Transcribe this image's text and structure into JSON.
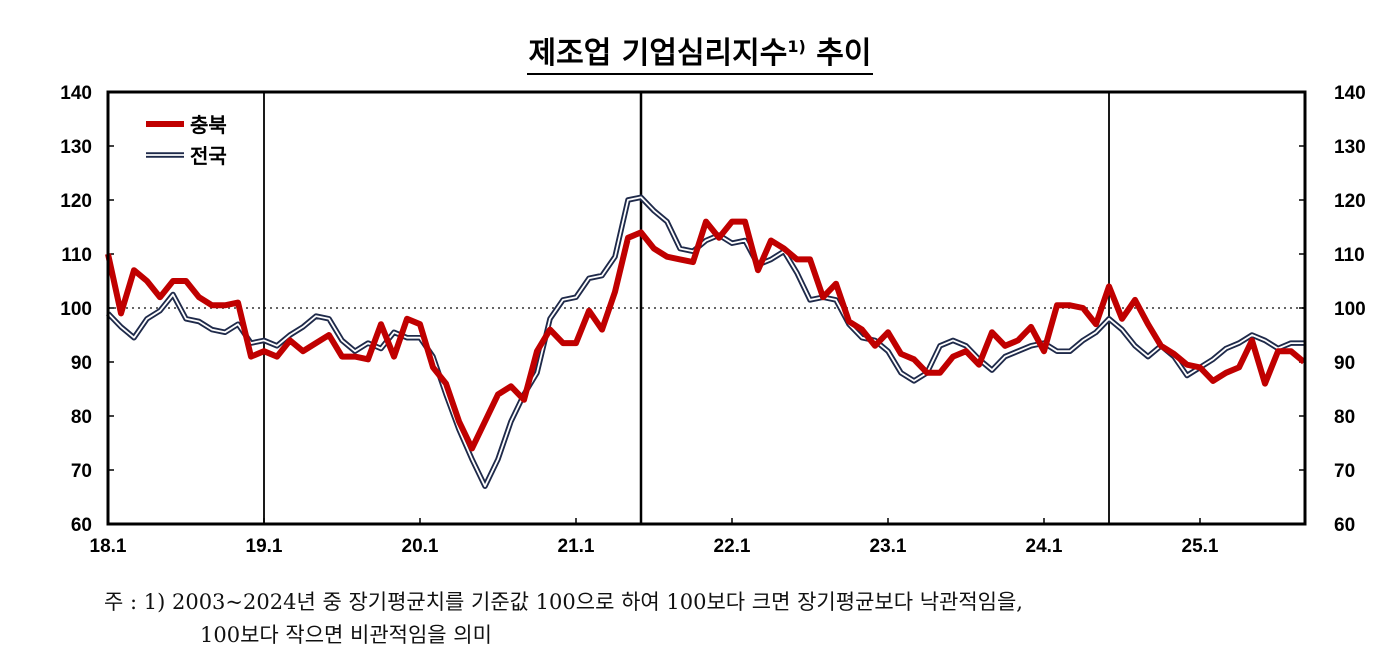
{
  "chart_data": {
    "type": "line",
    "title": "제조업 기업심리지수",
    "title_sup": "1)",
    "title_suffix": "추이",
    "ylim": [
      60,
      140
    ],
    "yticks": [
      60,
      70,
      80,
      90,
      100,
      110,
      120,
      130,
      140
    ],
    "xticks": [
      "18.1",
      "19.1",
      "20.1",
      "21.1",
      "22.1",
      "23.1",
      "24.1",
      "25.1"
    ],
    "x_start": "2018.01",
    "x_end": "2025.09",
    "frequency": "monthly",
    "reference_line": 100,
    "vertical_markers": [
      "2019.01",
      "2021.06",
      "2024.06"
    ],
    "legend_position": "top-left",
    "colors": {
      "충북": "#c00000",
      "전국": "#1f2a4a"
    },
    "series": [
      {
        "name": "충북",
        "values": [
          110,
          99,
          107,
          105,
          102,
          105,
          105,
          102,
          100.5,
          100.5,
          101,
          91,
          92,
          91,
          94,
          92,
          93.5,
          95,
          91,
          91,
          90.5,
          97,
          91,
          98,
          97,
          89,
          86,
          79,
          74,
          79,
          84,
          85.5,
          83,
          92,
          96,
          93.5,
          93.5,
          99.5,
          96,
          103,
          113,
          114,
          111,
          109.5,
          109,
          108.5,
          116,
          113,
          116,
          116,
          107,
          112.5,
          111,
          109,
          109,
          102,
          104.5,
          97.5,
          96,
          93,
          95.5,
          91.5,
          90.5,
          88,
          88,
          91,
          92,
          89.5,
          95.5,
          93,
          94,
          96.5,
          92,
          100.5,
          100.5,
          100,
          97,
          104,
          98,
          101.5,
          97,
          93,
          91.5,
          89.5,
          89,
          86.5,
          88,
          89,
          94,
          86,
          92,
          92,
          90
        ]
      },
      {
        "name": "전국",
        "values": [
          99,
          96.5,
          94.5,
          98,
          99.5,
          102.5,
          98,
          97.5,
          96,
          95.5,
          97,
          93.5,
          94,
          93,
          95,
          96.5,
          98.5,
          98,
          94,
          92,
          93.5,
          92.5,
          95.5,
          94.5,
          94.5,
          91,
          84,
          77.5,
          72,
          67,
          72,
          79,
          84,
          88,
          98,
          101.5,
          102,
          105.5,
          106,
          109.5,
          120,
          120.5,
          118,
          116,
          111,
          110.5,
          112.5,
          113.5,
          112,
          112.5,
          108,
          109,
          110.5,
          106.5,
          101.5,
          102,
          101.5,
          97,
          94.5,
          94,
          92,
          88,
          86.5,
          88,
          93,
          94,
          93,
          90.5,
          88.5,
          91,
          92,
          93,
          93.5,
          92,
          92,
          94,
          95.5,
          98,
          96,
          93,
          91,
          93,
          91,
          87.5,
          89,
          90.5,
          92.5,
          93.5,
          95,
          94,
          92.5,
          93.5,
          93.5
        ]
      }
    ]
  },
  "footnote": {
    "line1": "주 : 1) 2003~2024년 중 장기평균치를 기준값 100으로 하여 100보다 크면 장기평균보다 낙관적임을,",
    "line2": "100보다 작으면 비관적임을 의미"
  }
}
